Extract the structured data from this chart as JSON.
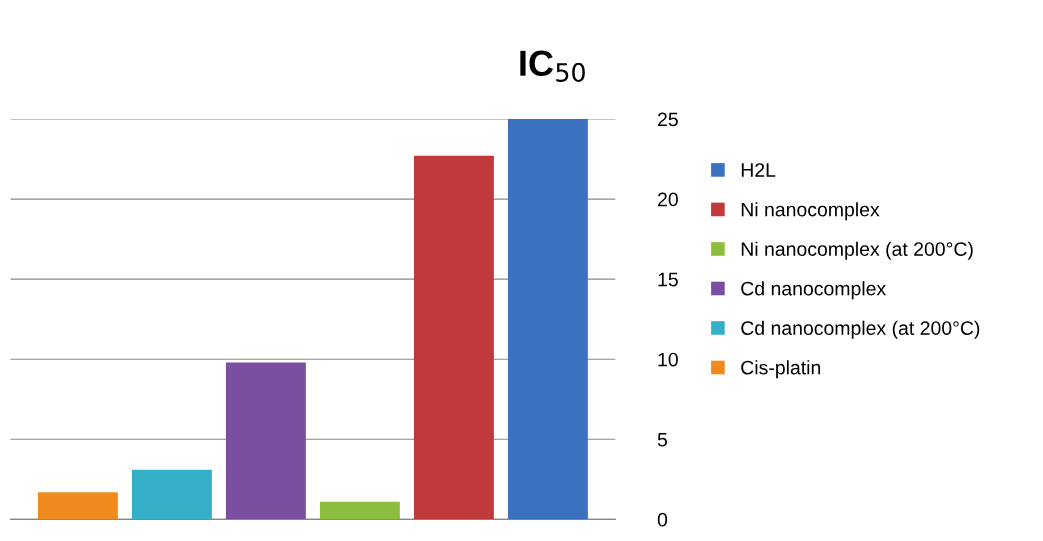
{
  "chart_data": {
    "type": "bar",
    "title": "IC$_{50}$",
    "categories": [
      null
    ],
    "series": [
      {
        "name": "H2L",
        "color": "#3a72c0",
        "values": [
          25
        ]
      },
      {
        "name": "Ni nanocomplex",
        "color": "#c0393b",
        "values": [
          22.7
        ]
      },
      {
        "name": "Ni nanocomplex (at 200°C)",
        "color": "#8cbd3f",
        "values": [
          1.1
        ]
      },
      {
        "name": "Cd nanocomplex",
        "color": "#7a4fa0",
        "values": [
          9.8
        ]
      },
      {
        "name": "Cd nanocomplex (at 200°C)",
        "color": "#35aec8",
        "values": [
          3.1
        ]
      },
      {
        "name": "Cis-platin",
        "color": "#ef8a1e",
        "values": [
          1.7
        ]
      }
    ],
    "ylim": [
      0,
      25
    ],
    "yticks": [
      0,
      5,
      10,
      15,
      20,
      25
    ],
    "grid": "y",
    "legend": "right"
  }
}
